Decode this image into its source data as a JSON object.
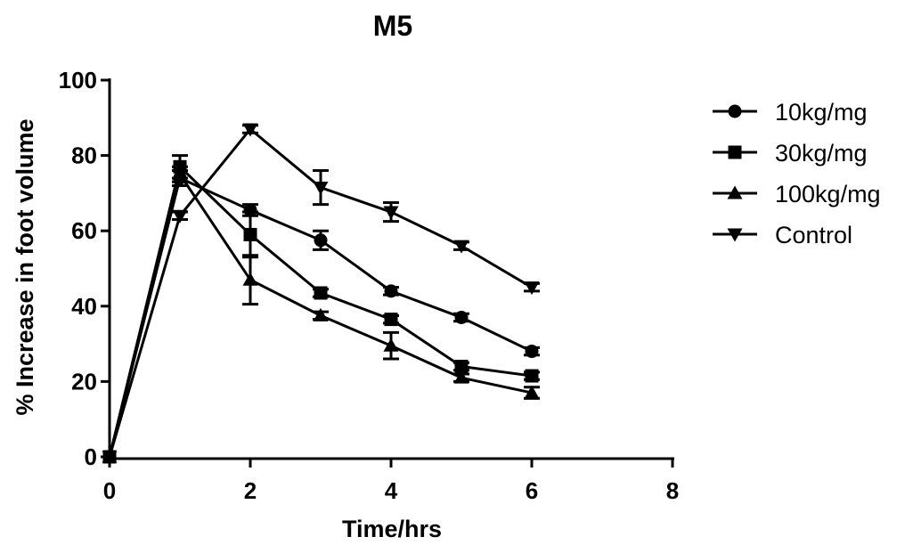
{
  "chart_data": {
    "type": "line",
    "title": "M5",
    "xlabel": "Time/hrs",
    "ylabel": "% Increase in foot volume",
    "xlim": [
      0,
      8
    ],
    "ylim": [
      0,
      100
    ],
    "x_ticks": [
      "0",
      "2",
      "4",
      "6",
      "8"
    ],
    "y_ticks": [
      "0",
      "20",
      "40",
      "60",
      "80",
      "100"
    ],
    "grid": false,
    "legend_position": "right",
    "x": [
      0,
      1,
      2,
      3,
      4,
      5,
      6
    ],
    "series": [
      {
        "name": "10kg/mg",
        "marker": "circle",
        "values": [
          0,
          74,
          65.5,
          57.5,
          44,
          37,
          28
        ],
        "error": [
          0,
          2,
          1.5,
          2.5,
          1,
          1,
          1
        ]
      },
      {
        "name": "30kg/mg",
        "marker": "square",
        "values": [
          0,
          77,
          59,
          43.5,
          36.5,
          24,
          21.5
        ],
        "error": [
          0,
          3,
          6,
          1,
          1,
          1,
          1
        ]
      },
      {
        "name": "100kg/mg",
        "marker": "triangle-up",
        "values": [
          0,
          75,
          47,
          37.5,
          29.5,
          21,
          17
        ],
        "error": [
          0,
          2,
          6.5,
          1,
          3.5,
          1,
          1.5
        ]
      },
      {
        "name": "Control",
        "marker": "triangle-down",
        "values": [
          0,
          64,
          87,
          71.5,
          65,
          56,
          45
        ],
        "error": [
          0,
          1,
          1,
          4.5,
          2.5,
          1,
          1
        ]
      }
    ]
  }
}
